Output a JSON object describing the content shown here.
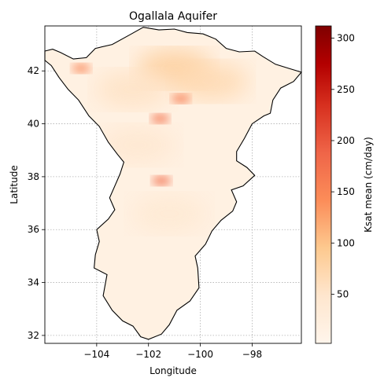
{
  "chart_data": {
    "type": "heatmap",
    "title": "Ogallala Aquifer",
    "xlabel": "Longitude",
    "ylabel": "Latitude",
    "xlim": [
      -106.0,
      -96.1
    ],
    "ylim": [
      31.7,
      43.7
    ],
    "xticks": [
      -104,
      -102,
      -100,
      -98
    ],
    "xtick_labels": [
      "−104",
      "−102",
      "−100",
      "−98"
    ],
    "yticks": [
      32,
      34,
      36,
      38,
      40,
      42
    ],
    "ytick_labels": [
      "32",
      "34",
      "36",
      "38",
      "40",
      "42"
    ],
    "grid": true,
    "colormap": "OrRd",
    "colorbar": {
      "label": "Ksat mean (cm/day)",
      "vmin": 2,
      "vmax": 312,
      "ticks": [
        50,
        100,
        150,
        200,
        250,
        300
      ],
      "tick_labels": [
        "50",
        "100",
        "150",
        "200",
        "250",
        "300"
      ]
    },
    "outline": [
      [
        -106.0,
        42.75
      ],
      [
        -105.7,
        42.82
      ],
      [
        -105.4,
        42.7
      ],
      [
        -104.9,
        42.45
      ],
      [
        -104.4,
        42.5
      ],
      [
        -104.05,
        42.85
      ],
      [
        -103.4,
        43.0
      ],
      [
        -102.75,
        43.35
      ],
      [
        -102.2,
        43.65
      ],
      [
        -101.6,
        43.55
      ],
      [
        -101.0,
        43.58
      ],
      [
        -100.5,
        43.45
      ],
      [
        -99.9,
        43.4
      ],
      [
        -99.4,
        43.2
      ],
      [
        -99.0,
        42.85
      ],
      [
        -98.5,
        42.72
      ],
      [
        -97.9,
        42.75
      ],
      [
        -97.6,
        42.55
      ],
      [
        -97.1,
        42.25
      ],
      [
        -96.6,
        42.1
      ],
      [
        -96.1,
        41.95
      ],
      [
        -96.4,
        41.6
      ],
      [
        -96.9,
        41.35
      ],
      [
        -97.2,
        40.9
      ],
      [
        -97.3,
        40.4
      ],
      [
        -97.55,
        40.3
      ],
      [
        -98.0,
        40.0
      ],
      [
        -98.3,
        39.45
      ],
      [
        -98.6,
        38.95
      ],
      [
        -98.6,
        38.6
      ],
      [
        -98.2,
        38.35
      ],
      [
        -97.9,
        38.05
      ],
      [
        -98.35,
        37.65
      ],
      [
        -98.8,
        37.5
      ],
      [
        -98.6,
        37.05
      ],
      [
        -98.75,
        36.7
      ],
      [
        -99.2,
        36.35
      ],
      [
        -99.55,
        35.95
      ],
      [
        -99.8,
        35.45
      ],
      [
        -100.2,
        35.0
      ],
      [
        -100.1,
        34.55
      ],
      [
        -100.05,
        33.8
      ],
      [
        -100.4,
        33.3
      ],
      [
        -100.9,
        32.95
      ],
      [
        -101.2,
        32.4
      ],
      [
        -101.5,
        32.05
      ],
      [
        -102.0,
        31.85
      ],
      [
        -102.3,
        31.95
      ],
      [
        -102.6,
        32.35
      ],
      [
        -103.0,
        32.55
      ],
      [
        -103.4,
        32.95
      ],
      [
        -103.75,
        33.5
      ],
      [
        -103.6,
        34.3
      ],
      [
        -104.1,
        34.55
      ],
      [
        -104.05,
        35.05
      ],
      [
        -103.9,
        35.55
      ],
      [
        -104.0,
        36.0
      ],
      [
        -103.55,
        36.4
      ],
      [
        -103.3,
        36.75
      ],
      [
        -103.5,
        37.2
      ],
      [
        -103.3,
        37.65
      ],
      [
        -103.1,
        38.1
      ],
      [
        -102.95,
        38.55
      ],
      [
        -103.2,
        38.85
      ],
      [
        -103.55,
        39.3
      ],
      [
        -103.9,
        39.9
      ],
      [
        -104.3,
        40.3
      ],
      [
        -104.7,
        40.9
      ],
      [
        -105.1,
        41.3
      ],
      [
        -105.45,
        41.75
      ],
      [
        -105.75,
        42.2
      ],
      [
        -106.0,
        42.4
      ]
    ],
    "high_value_patches": [
      {
        "center": [
          -101.55,
          40.2
        ],
        "value": 170
      },
      {
        "center": [
          -100.75,
          40.95
        ],
        "value": 160
      },
      {
        "center": [
          -101.5,
          37.85
        ],
        "value": 175
      },
      {
        "center": [
          -104.6,
          42.1
        ],
        "value": 150
      }
    ],
    "moderate_value_patches": [
      {
        "center": [
          -101.0,
          42.1
        ],
        "value": 85
      },
      {
        "center": [
          -99.6,
          41.6
        ],
        "value": 70
      },
      {
        "center": [
          -102.6,
          41.3
        ],
        "value": 55
      },
      {
        "center": [
          -102.4,
          39.2
        ],
        "value": 45
      },
      {
        "center": [
          -101.2,
          36.6
        ],
        "value": 40
      }
    ]
  }
}
